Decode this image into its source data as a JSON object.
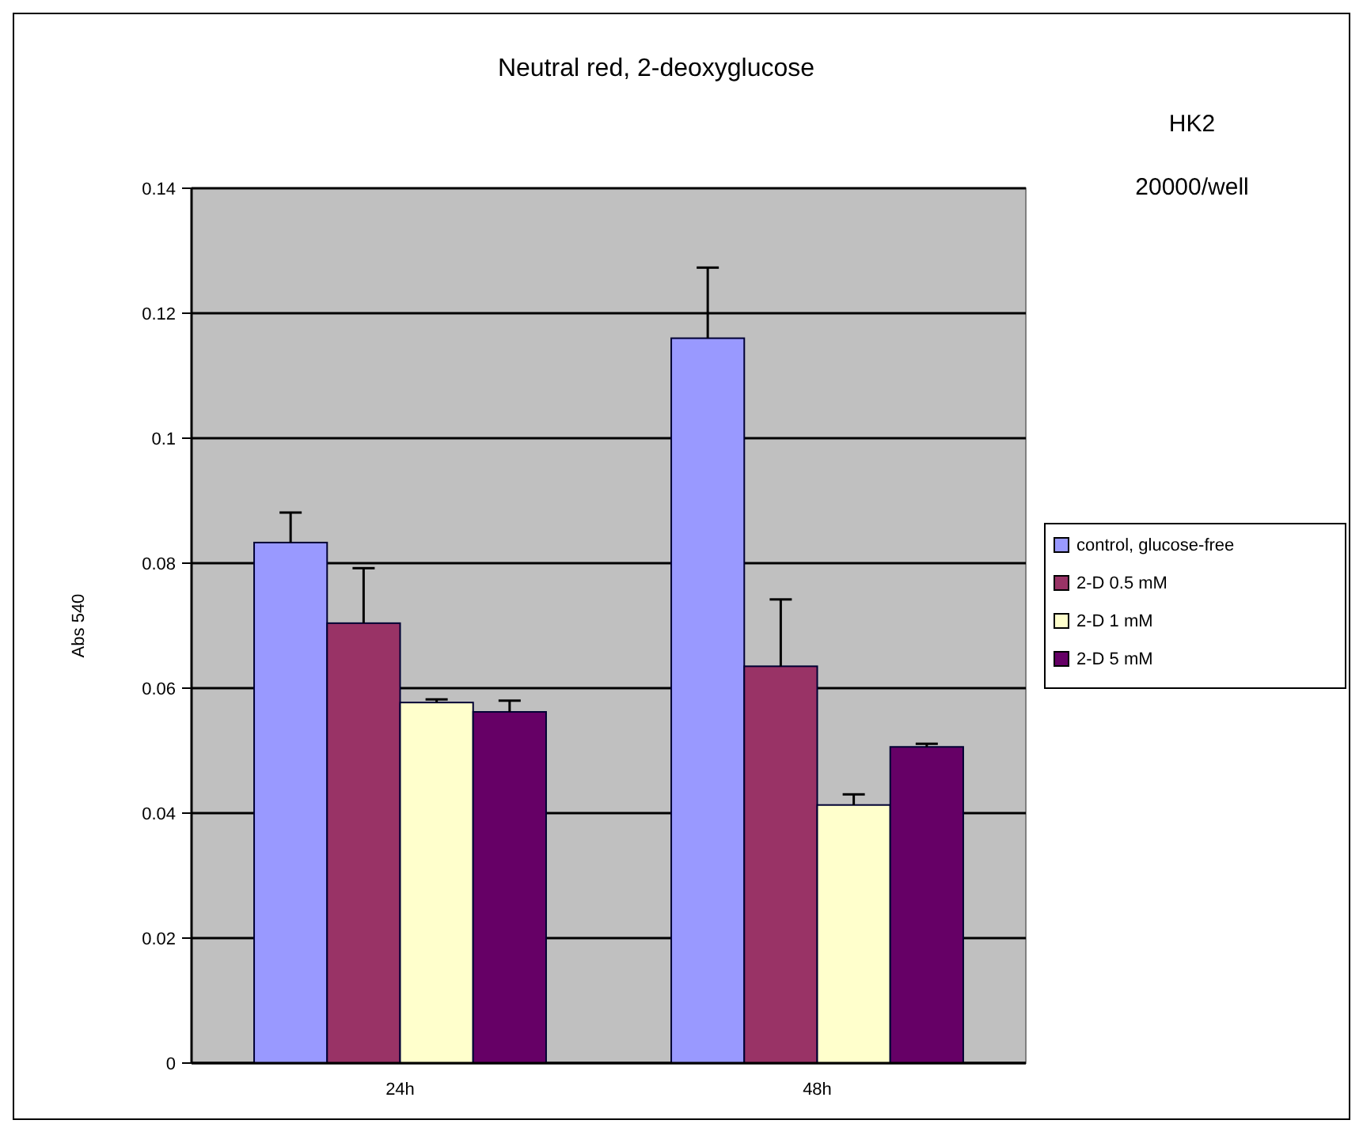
{
  "chart_data": {
    "type": "bar",
    "title": "Neutral red, 2-deoxyglucose",
    "ylabel": "Abs 540",
    "categories": [
      "24h",
      "48h"
    ],
    "series": [
      {
        "name": "control, glucose-free",
        "color": "#9999ff",
        "values": [
          0.0833,
          0.116
        ],
        "errors": [
          [
            0.0833,
            0.0881
          ],
          [
            0.116,
            0.1273
          ]
        ]
      },
      {
        "name": "2-D 0.5 mM",
        "color": "#993366",
        "values": [
          0.0704,
          0.0635
        ],
        "errors": [
          [
            0.0704,
            0.0792
          ],
          [
            0.0635,
            0.0742
          ]
        ]
      },
      {
        "name": "2-D 1 mM",
        "color": "#ffffcc",
        "values": [
          0.0577,
          0.0413
        ],
        "errors": [
          [
            0.0577,
            0.0582
          ],
          [
            0.0413,
            0.043
          ]
        ]
      },
      {
        "name": "2-D 5 mM",
        "color": "#660066",
        "values": [
          0.0562,
          0.0506
        ],
        "errors": [
          [
            0.0562,
            0.058
          ],
          [
            0.0506,
            0.0511
          ]
        ]
      }
    ],
    "ylim": [
      0,
      0.14
    ],
    "yticks": [
      0,
      0.02,
      0.04,
      0.06,
      0.08,
      0.1,
      0.12,
      0.14
    ],
    "grid": "y",
    "legend": "right",
    "annotations": [
      "HK2",
      "20000/well"
    ]
  }
}
